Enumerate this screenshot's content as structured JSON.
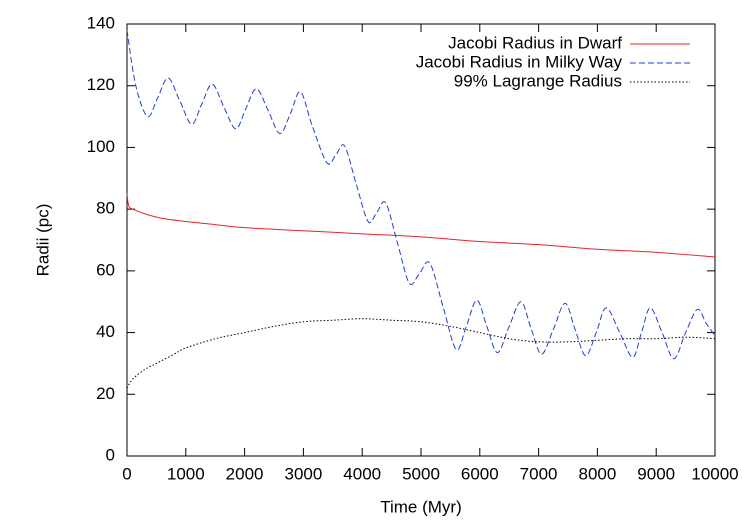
{
  "chart_data": {
    "type": "line",
    "x_label": "Time (Myr)",
    "y_label": "Radii (pc)",
    "xlim": [
      0,
      10000
    ],
    "ylim": [
      0,
      140
    ],
    "xticks": [
      0,
      1000,
      2000,
      3000,
      4000,
      5000,
      6000,
      7000,
      8000,
      9000,
      10000
    ],
    "yticks": [
      0,
      20,
      40,
      60,
      80,
      100,
      120,
      140
    ],
    "legend": "top-right",
    "series": [
      {
        "name": "Jacobi Radius in Dwarf",
        "color": "#e8262a",
        "dash": "solid",
        "x": [
          0,
          30,
          100,
          300,
          600,
          1000,
          1500,
          2000,
          3000,
          4000,
          5000,
          6000,
          7000,
          8000,
          9000,
          10000
        ],
        "values": [
          85,
          81,
          80,
          78.5,
          77,
          76,
          75,
          74,
          73,
          72,
          71,
          69.5,
          68.5,
          67,
          66,
          64.5
        ]
      },
      {
        "name": "Jacobi Radius in Milky Way",
        "color": "#1f3fd8",
        "dash": "dashed",
        "x": [
          0,
          150,
          350,
          520,
          700,
          900,
          1100,
          1270,
          1450,
          1650,
          1850,
          2020,
          2200,
          2400,
          2600,
          2780,
          2950,
          3150,
          3400,
          3550,
          3700,
          3900,
          4100,
          4250,
          4400,
          4600,
          4800,
          4970,
          5150,
          5380,
          5600,
          5770,
          5950,
          6120,
          6300,
          6500,
          6700,
          6870,
          7050,
          7250,
          7450,
          7620,
          7800,
          7980,
          8150,
          8380,
          8600,
          8750,
          8900,
          9100,
          9300,
          9500,
          9700,
          9850,
          10000
        ],
        "values": [
          138,
          120,
          110,
          116,
          122.5,
          115,
          107.5,
          114,
          120.5,
          113,
          106,
          112.5,
          119,
          112,
          104.5,
          111,
          118,
          107,
          95,
          97.5,
          100.5,
          88,
          76,
          79,
          82,
          69,
          56,
          59,
          62.5,
          48,
          34.5,
          42,
          50.5,
          42,
          33.5,
          42,
          50,
          41.5,
          33,
          41,
          49.5,
          41,
          32.5,
          40,
          48,
          40,
          32,
          40,
          48,
          40,
          31.5,
          40,
          47.5,
          43,
          39
        ]
      },
      {
        "name": "99% Lagrange Radius",
        "color": "#000000",
        "dash": "dotted",
        "x": [
          0,
          100,
          300,
          500,
          800,
          1000,
          1500,
          2000,
          2500,
          3000,
          3500,
          4000,
          4500,
          5000,
          5500,
          6000,
          6500,
          7000,
          7500,
          8000,
          8500,
          9000,
          9500,
          10000
        ],
        "values": [
          22,
          25,
          28,
          30,
          33,
          35,
          38,
          40,
          42,
          43.5,
          44,
          44.5,
          44,
          43.5,
          42,
          40,
          38,
          37,
          37,
          37.5,
          38,
          38,
          38.5,
          38
        ]
      }
    ]
  }
}
